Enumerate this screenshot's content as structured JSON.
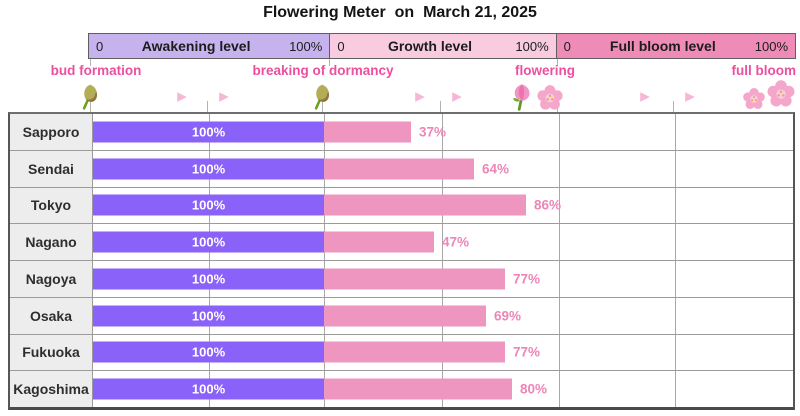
{
  "title": "Flowering Meter  on  March 21, 2025",
  "colors": {
    "awakening_bg": "#c6b3ee",
    "growth_bg": "#f8cbdf",
    "fullbloom_bg": "#ee8cb7",
    "awakening_bar": "#8a62fa",
    "growth_bar": "#ee95c0",
    "stage_text": "#ed4f9f",
    "growth_label_text": "#ee85b8"
  },
  "scale_header": {
    "sections": [
      {
        "label": "Awakening level",
        "min": "0",
        "max": "100%"
      },
      {
        "label": "Growth level",
        "min": "0",
        "max": "100%"
      },
      {
        "label": "Full bloom level",
        "min": "0",
        "max": "100%"
      }
    ]
  },
  "stages": {
    "bud_formation": "bud formation",
    "breaking_of_dormancy": "breaking of dormancy",
    "flowering": "flowering",
    "full_bloom": "full bloom"
  },
  "icons": {
    "bud": "flower-bud-icon",
    "arrow": "arrow-right-icon",
    "flowering_bud": "pink-bud-icon",
    "blossom": "cherry-blossom-icon"
  },
  "chart_data": {
    "type": "bar",
    "orientation": "horizontal",
    "title": "Flowering Meter  on  March 21, 2025",
    "categories": [
      "Sapporo",
      "Sendai",
      "Tokyo",
      "Nagano",
      "Nagoya",
      "Osaka",
      "Fukuoka",
      "Kagoshima"
    ],
    "series": [
      {
        "name": "Awakening level",
        "unit": "%",
        "values": [
          100,
          100,
          100,
          100,
          100,
          100,
          100,
          100
        ]
      },
      {
        "name": "Growth level",
        "unit": "%",
        "values": [
          37,
          64,
          86,
          47,
          77,
          69,
          77,
          80
        ]
      },
      {
        "name": "Full bloom level",
        "unit": "%",
        "values": [
          0,
          0,
          0,
          0,
          0,
          0,
          0,
          0
        ]
      }
    ],
    "bar_labels_awakening": [
      "100%",
      "100%",
      "100%",
      "100%",
      "100%",
      "100%",
      "100%",
      "100%"
    ],
    "bar_labels_growth": [
      "37%",
      "64%",
      "86%",
      "47%",
      "77%",
      "69%",
      "77%",
      "80%"
    ],
    "section_axis": {
      "min_label": "0",
      "max_label": "100%"
    },
    "legend_position": "top",
    "grid": true
  }
}
